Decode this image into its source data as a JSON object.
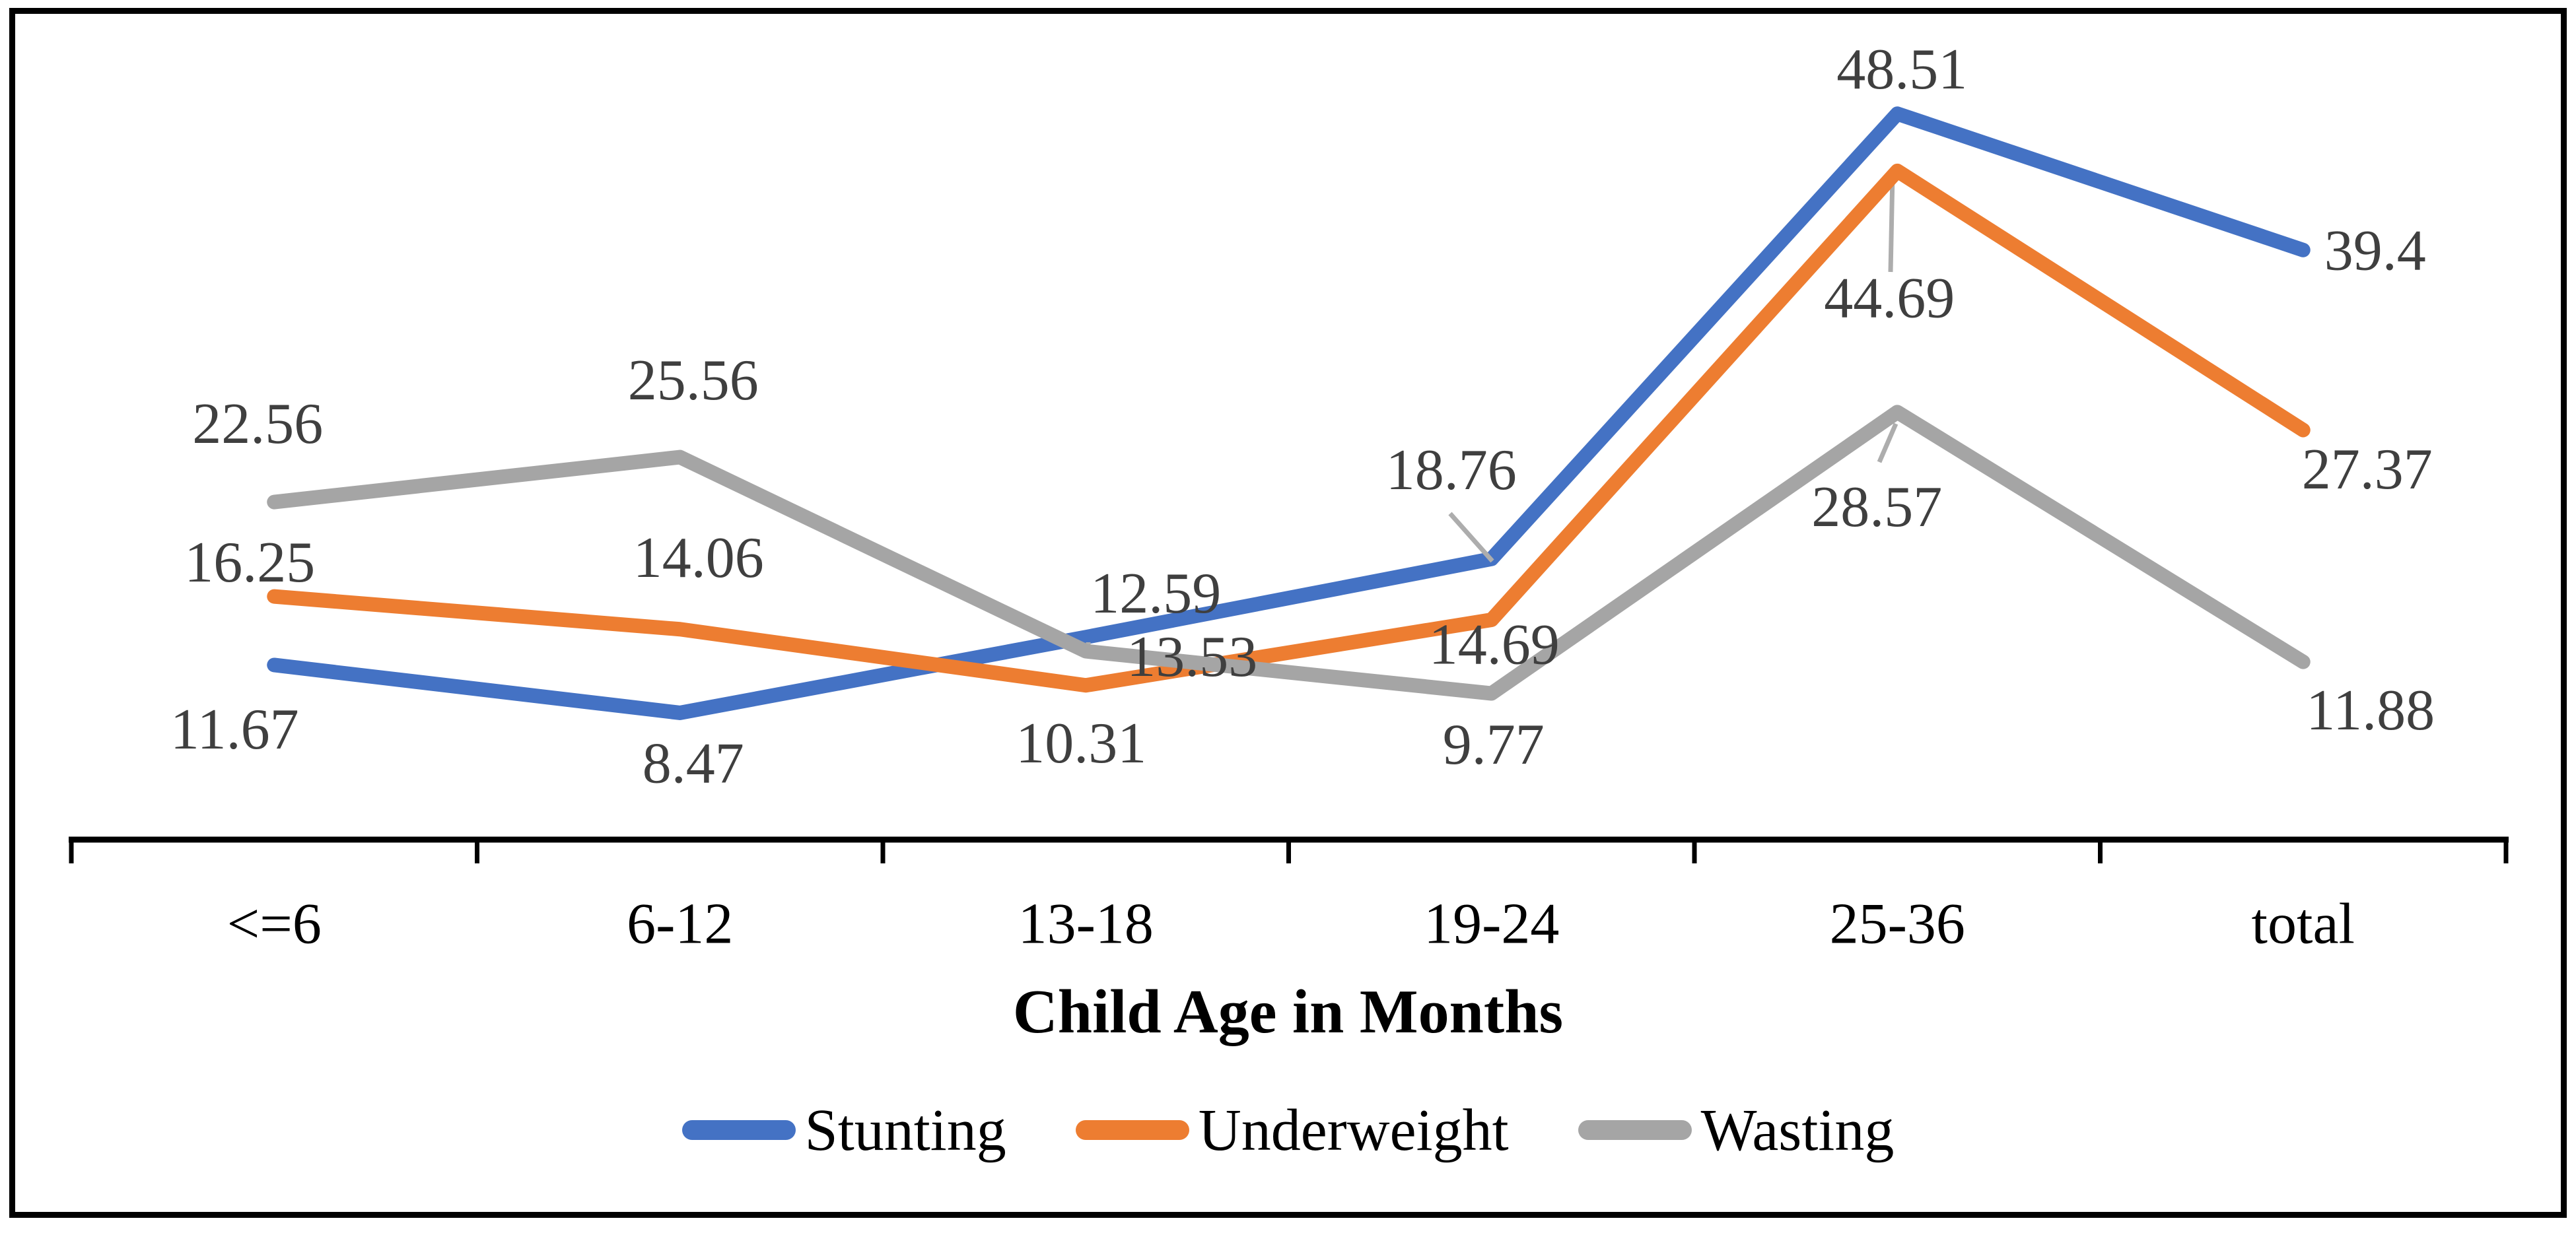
{
  "chart_data": {
    "type": "line",
    "title": "",
    "xlabel": "Child Age in Months",
    "ylabel": "",
    "categories": [
      "<=6",
      "6-12",
      "13-18",
      "19-24",
      "25-36",
      "total"
    ],
    "series": [
      {
        "name": "Stunting",
        "color": "#4472C4",
        "values": [
          11.67,
          8.47,
          13.53,
          18.76,
          48.51,
          39.4
        ],
        "labels": [
          "11.67",
          "8.47",
          "13.53",
          "18.76",
          "48.51",
          "39.4"
        ]
      },
      {
        "name": "Underweight",
        "color": "#ED7D31",
        "values": [
          16.25,
          14.06,
          10.31,
          14.69,
          44.69,
          27.37
        ],
        "labels": [
          "16.25",
          "14.06",
          "10.31",
          "14.69",
          "44.69",
          "27.37"
        ]
      },
      {
        "name": "Wasting",
        "color": "#A5A5A5",
        "values": [
          22.56,
          25.56,
          12.59,
          9.77,
          28.57,
          11.88
        ],
        "labels": [
          "22.56",
          "25.56",
          "12.59",
          "9.77",
          "28.57",
          "11.88"
        ]
      }
    ],
    "ylim": [
      0,
      52
    ],
    "grid": false,
    "legend_position": "bottom",
    "axis_color": "#000000",
    "data_label_color": "#3F3F3F",
    "leader_line_color": "#ADADAD"
  }
}
